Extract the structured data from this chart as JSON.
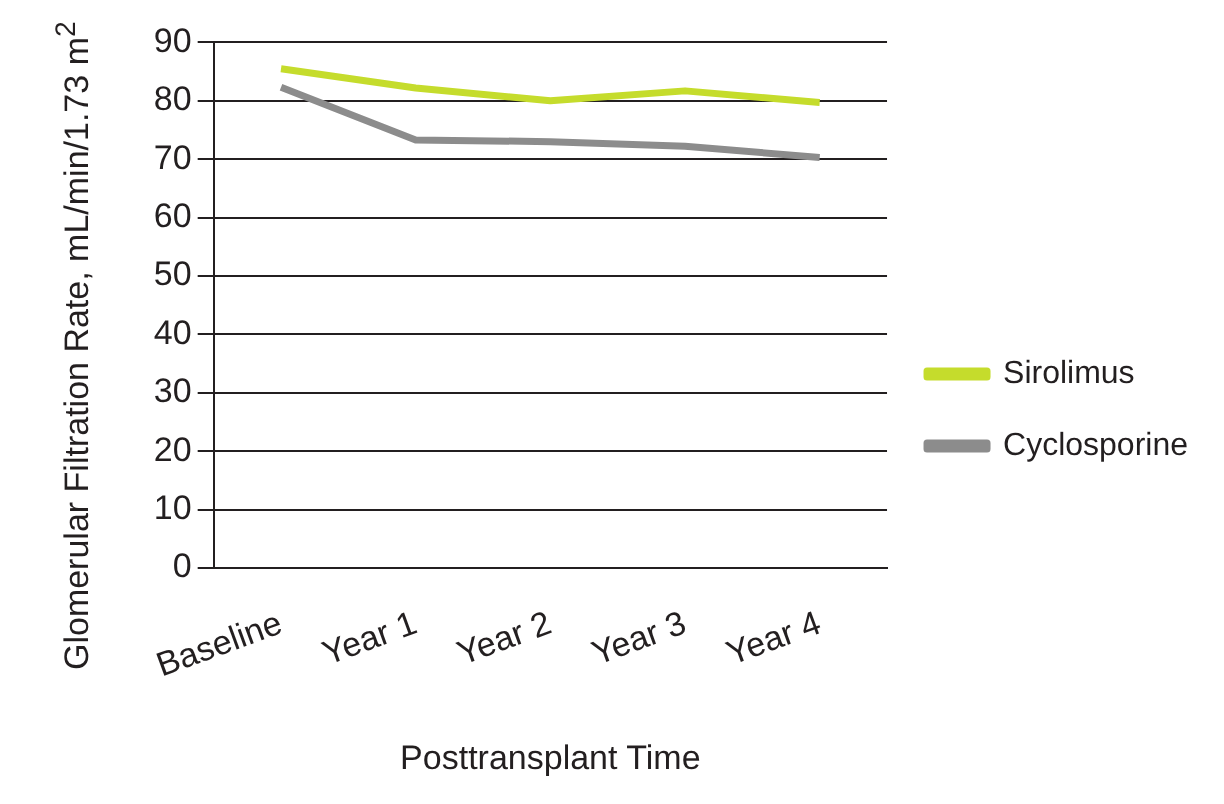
{
  "chart_data": {
    "type": "line",
    "xlabel": "Posttransplant Time",
    "ylabel": "Glomerular Filtration Rate, mL/min/1.73 m$^{2}$",
    "categories": [
      "Baseline",
      "Year 1",
      "Year 2",
      "Year 3",
      "Year 4"
    ],
    "series": [
      {
        "name": "Sirolimus",
        "color": "#c5dc2c",
        "values": [
          85.5,
          82.2,
          80,
          81.7,
          79.7
        ]
      },
      {
        "name": "Cyclosporine",
        "color": "#8c8c8c",
        "values": [
          82.3,
          73.3,
          73,
          72.2,
          70.3
        ]
      }
    ],
    "ylim": [
      0,
      90
    ],
    "yticks": [
      0,
      10,
      20,
      30,
      40,
      50,
      60,
      70,
      80,
      90
    ],
    "grid": "y",
    "legend": "right",
    "marker": "none",
    "line_style": "solid"
  }
}
